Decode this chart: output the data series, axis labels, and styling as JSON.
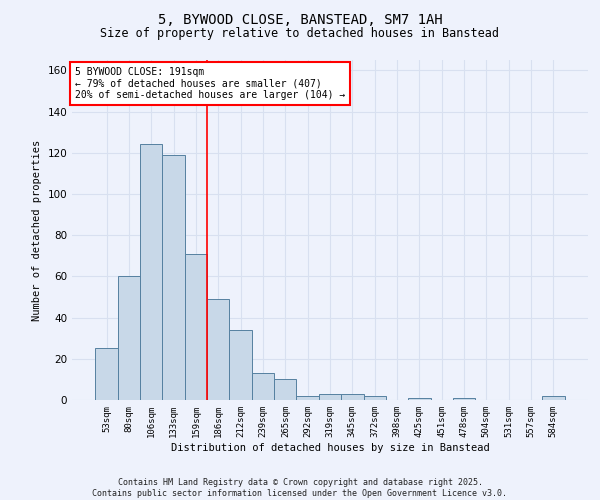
{
  "title": "5, BYWOOD CLOSE, BANSTEAD, SM7 1AH",
  "subtitle": "Size of property relative to detached houses in Banstead",
  "xlabel": "Distribution of detached houses by size in Banstead",
  "ylabel": "Number of detached properties",
  "bar_color": "#c8d8e8",
  "bar_edge_color": "#5580a0",
  "categories": [
    "53sqm",
    "80sqm",
    "106sqm",
    "133sqm",
    "159sqm",
    "186sqm",
    "212sqm",
    "239sqm",
    "265sqm",
    "292sqm",
    "319sqm",
    "345sqm",
    "372sqm",
    "398sqm",
    "425sqm",
    "451sqm",
    "478sqm",
    "504sqm",
    "531sqm",
    "557sqm",
    "584sqm"
  ],
  "values": [
    25,
    60,
    124,
    119,
    71,
    49,
    34,
    13,
    10,
    2,
    3,
    3,
    2,
    0,
    1,
    0,
    1,
    0,
    0,
    0,
    2
  ],
  "annotation_text": "5 BYWOOD CLOSE: 191sqm\n← 79% of detached houses are smaller (407)\n20% of semi-detached houses are larger (104) →",
  "annotation_box_color": "white",
  "annotation_box_edge_color": "red",
  "vline_index": 5,
  "vline_color": "red",
  "ylim": [
    0,
    165
  ],
  "yticks": [
    0,
    20,
    40,
    60,
    80,
    100,
    120,
    140,
    160
  ],
  "grid_color": "#d8e0f0",
  "footer_line1": "Contains HM Land Registry data © Crown copyright and database right 2025.",
  "footer_line2": "Contains public sector information licensed under the Open Government Licence v3.0.",
  "bg_color": "#eef2fc",
  "title_fontsize": 10,
  "subtitle_fontsize": 8.5
}
